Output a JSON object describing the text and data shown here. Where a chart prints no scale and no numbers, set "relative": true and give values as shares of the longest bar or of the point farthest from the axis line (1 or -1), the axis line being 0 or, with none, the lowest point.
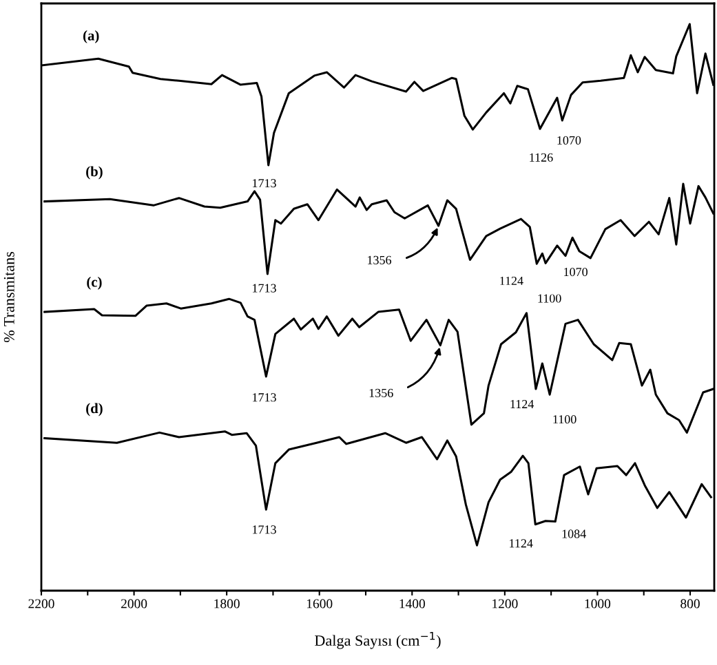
{
  "chart_data": {
    "type": "line",
    "relative": true,
    "xlabel": "Dalga Sayısı (cm$^{−1}$)",
    "ylabel": "% Transmitans",
    "xlim": [
      2200,
      748
    ],
    "xticks": [
      2200,
      {
        "value": 2100,
        "label": null
      },
      2000,
      {
        "value": 1900,
        "label": null
      },
      1800,
      {
        "value": 1700,
        "label": null
      },
      1600,
      {
        "value": 1500,
        "label": null
      },
      1400,
      {
        "value": 1300,
        "label": null
      },
      1200,
      {
        "value": 1100,
        "label": null
      },
      1000,
      {
        "value": 900,
        "label": null
      },
      800
    ],
    "tick_labels": "x",
    "marker": "none",
    "line_style": "solid",
    "series": [
      {
        "name": "(a)",
        "color": "#000000",
        "x": [
          2200,
          2077,
          2011,
          2003,
          1943,
          1903,
          1833,
          1810,
          1770,
          1735,
          1725,
          1710,
          1698,
          1666,
          1611,
          1584,
          1547,
          1522,
          1487,
          1413,
          1395,
          1376,
          1314,
          1305,
          1287,
          1269,
          1240,
          1202,
          1188,
          1173,
          1150,
          1124,
          1087,
          1076,
          1057,
          1032,
          993,
          943,
          928,
          913,
          898,
          874,
          837,
          830,
          801,
          785,
          767,
          750
        ],
        "values": [
          0.927,
          0.939,
          0.925,
          0.914,
          0.903,
          0.9,
          0.894,
          0.91,
          0.893,
          0.896,
          0.872,
          0.751,
          0.808,
          0.878,
          0.909,
          0.915,
          0.888,
          0.91,
          0.899,
          0.881,
          0.898,
          0.882,
          0.905,
          0.903,
          0.838,
          0.814,
          0.844,
          0.878,
          0.86,
          0.891,
          0.885,
          0.815,
          0.87,
          0.83,
          0.875,
          0.897,
          0.9,
          0.905,
          0.945,
          0.915,
          0.942,
          0.919,
          0.913,
          0.943,
          1.0,
          0.878,
          0.948,
          0.893
        ]
      },
      {
        "name": "(b)",
        "color": "#000000",
        "x": [
          2193,
          2052,
          1958,
          1903,
          1848,
          1814,
          1755,
          1740,
          1728,
          1712,
          1695,
          1683,
          1655,
          1626,
          1602,
          1562,
          1522,
          1513,
          1498,
          1487,
          1455,
          1438,
          1416,
          1366,
          1343,
          1324,
          1305,
          1275,
          1240,
          1210,
          1165,
          1146,
          1131,
          1119,
          1112,
          1087,
          1069,
          1054,
          1039,
          1015,
          983,
          950,
          920,
          889,
          868,
          845,
          830,
          815,
          800,
          782,
          767,
          750
        ],
        "values": [
          0.687,
          0.691,
          0.68,
          0.693,
          0.678,
          0.676,
          0.687,
          0.705,
          0.69,
          0.559,
          0.654,
          0.648,
          0.674,
          0.682,
          0.654,
          0.708,
          0.678,
          0.694,
          0.672,
          0.682,
          0.689,
          0.668,
          0.657,
          0.68,
          0.644,
          0.689,
          0.674,
          0.584,
          0.626,
          0.639,
          0.656,
          0.642,
          0.577,
          0.595,
          0.578,
          0.609,
          0.591,
          0.623,
          0.599,
          0.587,
          0.638,
          0.654,
          0.626,
          0.651,
          0.629,
          0.693,
          0.611,
          0.718,
          0.648,
          0.714,
          0.694,
          0.666
        ]
      },
      {
        "name": "(c)",
        "color": "#000000",
        "x": [
          2193,
          2086,
          2069,
          1997,
          1973,
          1930,
          1899,
          1833,
          1795,
          1770,
          1755,
          1740,
          1715,
          1695,
          1655,
          1640,
          1614,
          1602,
          1584,
          1559,
          1529,
          1514,
          1473,
          1428,
          1403,
          1369,
          1339,
          1321,
          1302,
          1272,
          1245,
          1235,
          1208,
          1176,
          1153,
          1133,
          1119,
          1103,
          1069,
          1042,
          1008,
          968,
          953,
          928,
          904,
          886,
          874,
          849,
          824,
          807,
          772,
          750
        ],
        "values": [
          0.492,
          0.497,
          0.486,
          0.485,
          0.503,
          0.507,
          0.498,
          0.507,
          0.515,
          0.508,
          0.484,
          0.478,
          0.378,
          0.453,
          0.48,
          0.461,
          0.48,
          0.462,
          0.484,
          0.45,
          0.48,
          0.465,
          0.492,
          0.496,
          0.441,
          0.478,
          0.433,
          0.478,
          0.457,
          0.293,
          0.313,
          0.362,
          0.435,
          0.456,
          0.49,
          0.356,
          0.401,
          0.346,
          0.471,
          0.478,
          0.435,
          0.407,
          0.437,
          0.435,
          0.362,
          0.39,
          0.346,
          0.313,
          0.301,
          0.279,
          0.35,
          0.356
        ]
      },
      {
        "name": "(d)",
        "color": "#000000",
        "x": [
          2193,
          2037,
          1945,
          1903,
          1804,
          1789,
          1757,
          1737,
          1715,
          1695,
          1666,
          1606,
          1557,
          1542,
          1458,
          1413,
          1379,
          1346,
          1324,
          1305,
          1284,
          1260,
          1235,
          1210,
          1186,
          1161,
          1149,
          1134,
          1112,
          1091,
          1072,
          1038,
          1020,
          1002,
          957,
          938,
          919,
          898,
          871,
          845,
          809,
          775,
          755
        ],
        "values": [
          0.269,
          0.261,
          0.279,
          0.271,
          0.281,
          0.275,
          0.278,
          0.256,
          0.143,
          0.225,
          0.249,
          0.261,
          0.271,
          0.259,
          0.278,
          0.261,
          0.271,
          0.232,
          0.265,
          0.237,
          0.152,
          0.08,
          0.156,
          0.196,
          0.21,
          0.238,
          0.225,
          0.117,
          0.123,
          0.122,
          0.204,
          0.219,
          0.17,
          0.216,
          0.22,
          0.204,
          0.225,
          0.186,
          0.146,
          0.174,
          0.129,
          0.188,
          0.165
        ]
      }
    ],
    "annotations": [
      {
        "text": "1713",
        "x": 1713,
        "y": 0.751
      },
      {
        "text": "1126",
        "x": 1126,
        "y": 0.815
      },
      {
        "text": "1070",
        "x": 1070,
        "y": 0.83
      },
      {
        "text": "1713",
        "x": 1713,
        "y": 0.559
      },
      {
        "text": "1356",
        "x": 1343,
        "y": 0.644
      },
      {
        "text": "1124",
        "x": 1124,
        "y": 0.577
      },
      {
        "text": "1100",
        "x": 1112,
        "y": 0.578
      },
      {
        "text": "1070",
        "x": 1070,
        "y": 0.591
      },
      {
        "text": "1713",
        "x": 1713,
        "y": 0.378
      },
      {
        "text": "1356",
        "x": 1339,
        "y": 0.433
      },
      {
        "text": "1124",
        "x": 1124,
        "y": 0.356
      },
      {
        "text": "1100",
        "x": 1100,
        "y": 0.346
      },
      {
        "text": "1713",
        "x": 1713,
        "y": 0.143
      },
      {
        "text": "1124",
        "x": 1124,
        "y": 0.117
      },
      {
        "text": "1084",
        "x": 1084,
        "y": 0.122
      }
    ]
  }
}
